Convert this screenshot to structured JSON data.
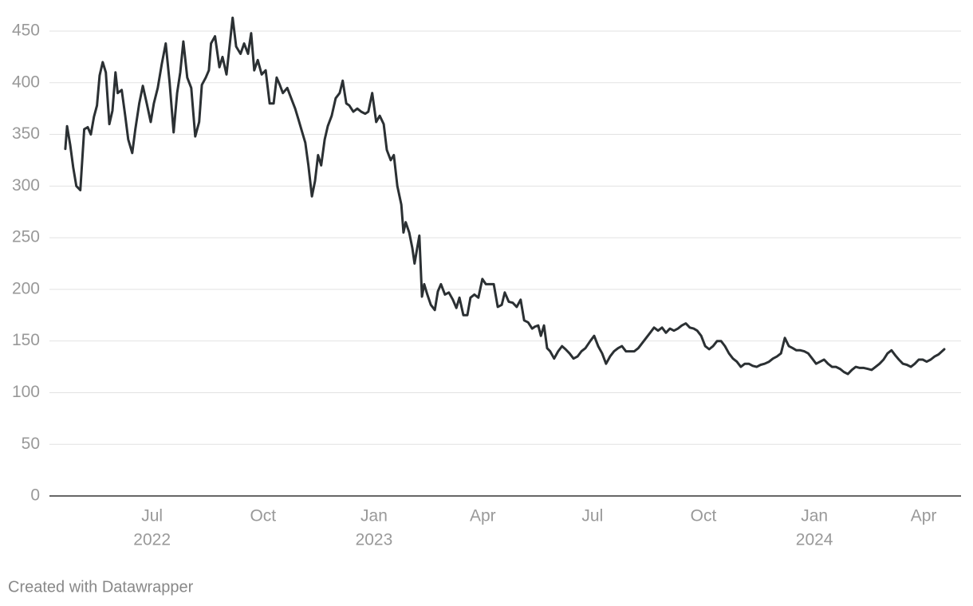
{
  "chart_data": {
    "type": "line",
    "color": "#2b3033",
    "x": [
      2022.299,
      2022.303,
      2022.31,
      2022.317,
      2022.324,
      2022.333,
      2022.342,
      2022.35,
      2022.357,
      2022.364,
      2022.371,
      2022.377,
      2022.384,
      2022.391,
      2022.399,
      2022.406,
      2022.413,
      2022.418,
      2022.427,
      2022.435,
      2022.442,
      2022.451,
      2022.458,
      2022.467,
      2022.475,
      2022.484,
      2022.493,
      2022.5,
      2022.509,
      2022.518,
      2022.527,
      2022.536,
      2022.545,
      2022.553,
      2022.56,
      2022.567,
      2022.576,
      2022.585,
      2022.594,
      2022.603,
      2022.609,
      2022.618,
      2022.625,
      2022.63,
      2022.639,
      2022.649,
      2022.656,
      2022.665,
      2022.672,
      2022.679,
      2022.687,
      2022.697,
      2022.705,
      2022.714,
      2022.721,
      2022.728,
      2022.736,
      2022.745,
      2022.754,
      2022.763,
      2022.772,
      2022.779,
      2022.786,
      2022.793,
      2022.803,
      2022.812,
      2022.821,
      2022.828,
      2022.835,
      2022.844,
      2022.851,
      2022.859,
      2022.866,
      2022.873,
      2022.88,
      2022.888,
      2022.895,
      2022.904,
      2022.913,
      2022.922,
      2022.929,
      2022.937,
      2022.944,
      2022.953,
      2022.962,
      2022.971,
      2022.98,
      2022.987,
      2022.996,
      2023.005,
      2023.013,
      2023.022,
      2023.029,
      2023.038,
      2023.045,
      2023.053,
      2023.062,
      2023.067,
      2023.072,
      2023.08,
      2023.087,
      2023.092,
      2023.098,
      2023.103,
      2023.109,
      2023.114,
      2023.121,
      2023.129,
      2023.138,
      2023.145,
      2023.152,
      2023.161,
      2023.17,
      2023.179,
      2023.187,
      2023.194,
      2023.203,
      2023.212,
      2023.219,
      2023.228,
      2023.237,
      2023.246,
      2023.254,
      2023.263,
      2023.272,
      2023.281,
      2023.29,
      2023.297,
      2023.306,
      2023.315,
      2023.324,
      2023.333,
      2023.341,
      2023.35,
      2023.359,
      2023.366,
      2023.373,
      2023.379,
      2023.386,
      2023.393,
      2023.4,
      2023.409,
      2023.418,
      2023.427,
      2023.435,
      2023.444,
      2023.453,
      2023.462,
      2023.471,
      2023.48,
      2023.491,
      2023.5,
      2023.509,
      2023.518,
      2023.527,
      2023.536,
      2023.545,
      2023.554,
      2023.563,
      2023.572,
      2023.58,
      2023.591,
      2023.6,
      2023.609,
      2023.618,
      2023.627,
      2023.636,
      2023.645,
      2023.654,
      2023.663,
      2023.672,
      2023.681,
      2023.69,
      2023.699,
      2023.708,
      2023.717,
      2023.726,
      2023.734,
      2023.743,
      2023.752,
      2023.761,
      2023.77,
      2023.779,
      2023.788,
      2023.797,
      2023.806,
      2023.815,
      2023.824,
      2023.833,
      2023.842,
      2023.851,
      2023.86,
      2023.869,
      2023.878,
      2023.887,
      2023.897,
      2023.906,
      2023.915,
      2023.924,
      2023.933,
      2023.942,
      2023.951,
      2023.959,
      2023.968,
      2023.977,
      2023.986,
      2023.995,
      2024.004,
      2024.013,
      2024.022,
      2024.031,
      2024.04,
      2024.049,
      2024.058,
      2024.067,
      2024.076,
      2024.085,
      2024.094,
      2024.103,
      2024.112,
      2024.121,
      2024.13,
      2024.139,
      2024.148,
      2024.157,
      2024.166,
      2024.175,
      2024.184,
      2024.192,
      2024.201,
      2024.21,
      2024.219,
      2024.228,
      2024.237,
      2024.246,
      2024.255,
      2024.264,
      2024.273,
      2024.282,
      2024.295
    ],
    "values": [
      336,
      358,
      340,
      318,
      300,
      296,
      355,
      357,
      350,
      367,
      378,
      407,
      420,
      410,
      360,
      373,
      410,
      390,
      393,
      368,
      345,
      332,
      355,
      380,
      397,
      380,
      362,
      380,
      395,
      418,
      438,
      400,
      352,
      390,
      410,
      440,
      405,
      395,
      348,
      362,
      398,
      405,
      412,
      438,
      445,
      415,
      425,
      408,
      435,
      463,
      435,
      428,
      438,
      428,
      448,
      412,
      422,
      408,
      412,
      380,
      380,
      405,
      398,
      390,
      395,
      385,
      375,
      365,
      355,
      342,
      320,
      290,
      305,
      330,
      320,
      345,
      358,
      368,
      385,
      390,
      402,
      380,
      378,
      372,
      375,
      372,
      370,
      372,
      390,
      362,
      368,
      360,
      335,
      325,
      330,
      300,
      282,
      255,
      265,
      255,
      240,
      225,
      240,
      252,
      193,
      205,
      195,
      185,
      180,
      198,
      205,
      195,
      197,
      190,
      182,
      192,
      175,
      175,
      192,
      195,
      192,
      210,
      205,
      205,
      205,
      183,
      185,
      197,
      188,
      187,
      183,
      190,
      170,
      168,
      162,
      164,
      165,
      155,
      165,
      143,
      140,
      133,
      140,
      145,
      142,
      138,
      133,
      135,
      140,
      143,
      150,
      155,
      145,
      138,
      128,
      135,
      140,
      143,
      145,
      140,
      140,
      140,
      143,
      148,
      153,
      158,
      163,
      160,
      163,
      158,
      162,
      160,
      162,
      165,
      167,
      163,
      162,
      160,
      155,
      145,
      142,
      145,
      150,
      150,
      145,
      138,
      133,
      130,
      125,
      128,
      128,
      126,
      125,
      127,
      128,
      130,
      133,
      135,
      138,
      153,
      145,
      143,
      141,
      141,
      140,
      138,
      133,
      128,
      130,
      132,
      128,
      125,
      125,
      123,
      120,
      118,
      122,
      125,
      124,
      124,
      123,
      122,
      125,
      128,
      132,
      138,
      141,
      136,
      132,
      128,
      127,
      125,
      128,
      132,
      132,
      130,
      132,
      135,
      137,
      142
    ],
    "xlim": [
      2022.263,
      2024.333
    ],
    "xticks": [
      {
        "value": 2022.496,
        "label": "Jul"
      },
      {
        "value": 2022.748,
        "label": "Oct"
      },
      {
        "value": 2023.0,
        "label": "Jan"
      },
      {
        "value": 2023.247,
        "label": "Apr"
      },
      {
        "value": 2023.496,
        "label": "Jul"
      },
      {
        "value": 2023.748,
        "label": "Oct"
      },
      {
        "value": 2024.0,
        "label": "Jan"
      },
      {
        "value": 2024.248,
        "label": "Apr"
      }
    ],
    "xtick_years": [
      {
        "value": 2022.496,
        "label": "2022"
      },
      {
        "value": 2023.0,
        "label": "2023"
      },
      {
        "value": 2024.0,
        "label": "2024"
      }
    ],
    "ylim": [
      0,
      450
    ],
    "yticks": [
      0,
      50,
      100,
      150,
      200,
      250,
      300,
      350,
      400,
      450
    ],
    "grid": true,
    "footer": "Created with Datawrapper"
  }
}
